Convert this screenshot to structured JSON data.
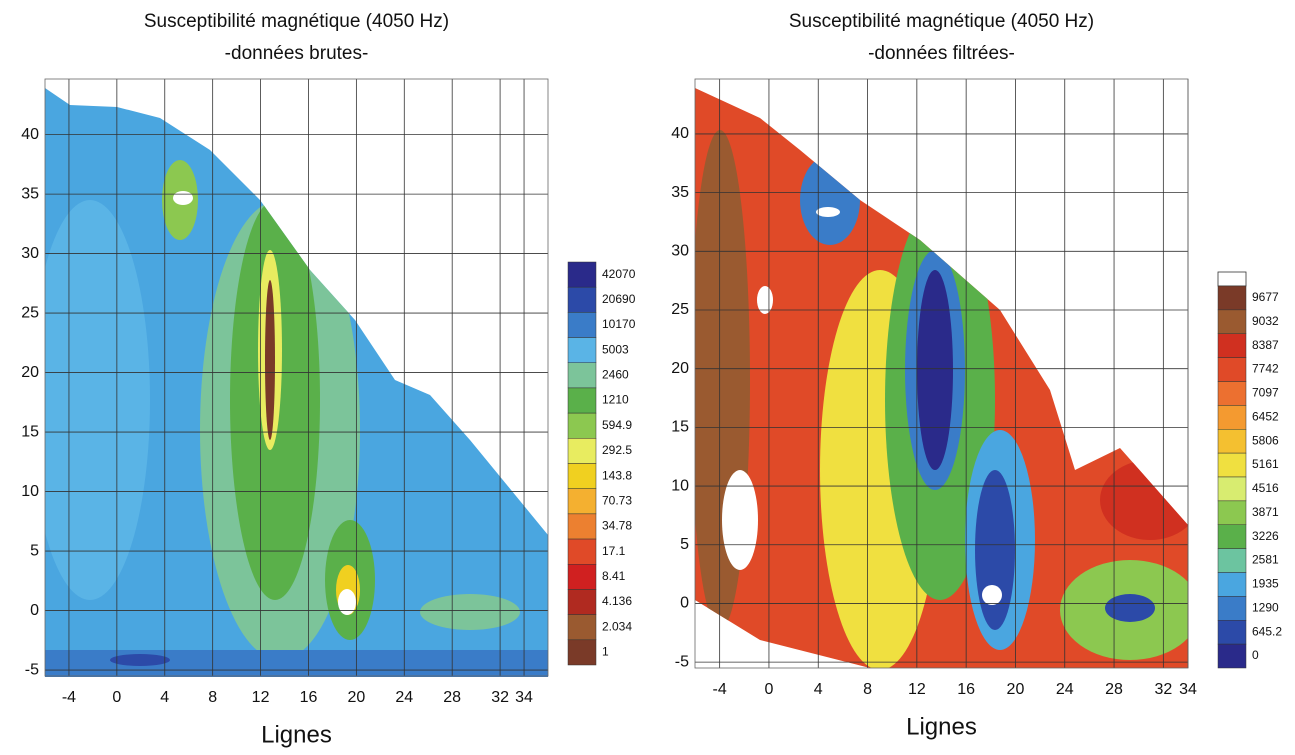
{
  "chart_data": [
    {
      "type": "contour",
      "title": "Susceptibilité magnétique (4050 Hz)",
      "subtitle": "-données brutes-",
      "xlabel": "Lignes",
      "xlim": [
        -6,
        36
      ],
      "ylim": [
        -5.5,
        44
      ],
      "xticks": [
        -4,
        0,
        4,
        8,
        12,
        16,
        20,
        24,
        28,
        32,
        34
      ],
      "yticks": [
        -5,
        0,
        5,
        10,
        15,
        20,
        25,
        30,
        35,
        40
      ],
      "grid": true,
      "colorbar": {
        "levels": [
          42070,
          20690,
          10170,
          5003,
          2460,
          1210,
          594.9,
          292.5,
          143.8,
          70.73,
          34.78,
          17.1,
          8.41,
          4.136,
          2.034,
          1
        ],
        "colors": [
          "#2a2a8a",
          "#2c4aa8",
          "#3a7cc8",
          "#5ab4e6",
          "#7cc49a",
          "#5ab04a",
          "#8cc850",
          "#e8ec60",
          "#f0d020",
          "#f4b030",
          "#ec8030",
          "#e04a28",
          "#d02020",
          "#b02a20",
          "#9a5a30",
          "#7a3a28"
        ]
      }
    },
    {
      "type": "contour",
      "title": "Susceptibilité magnétique (4050 Hz)",
      "subtitle": "-données filtrées-",
      "xlabel": "Lignes",
      "xlim": [
        -6,
        34
      ],
      "ylim": [
        -5.5,
        44
      ],
      "xticks": [
        -4,
        0,
        4,
        8,
        12,
        16,
        20,
        24,
        28,
        32,
        34
      ],
      "yticks": [
        -5,
        0,
        5,
        10,
        15,
        20,
        25,
        30,
        35,
        40
      ],
      "grid": true,
      "colorbar": {
        "levels": [
          9677,
          9032,
          8387,
          7742,
          7097,
          6452,
          5806,
          5161,
          4516,
          3871,
          3226,
          2581,
          1935,
          1290,
          645.2,
          0
        ],
        "colors": [
          "#7a3a28",
          "#9a5a30",
          "#d03020",
          "#e04a28",
          "#ec7030",
          "#f49a30",
          "#f4c030",
          "#f0e040",
          "#d8ec70",
          "#8cc850",
          "#5ab04a",
          "#6cc4a0",
          "#4aa6e0",
          "#3a7cc8",
          "#2c4aa8",
          "#2a2a8a"
        ]
      }
    }
  ]
}
